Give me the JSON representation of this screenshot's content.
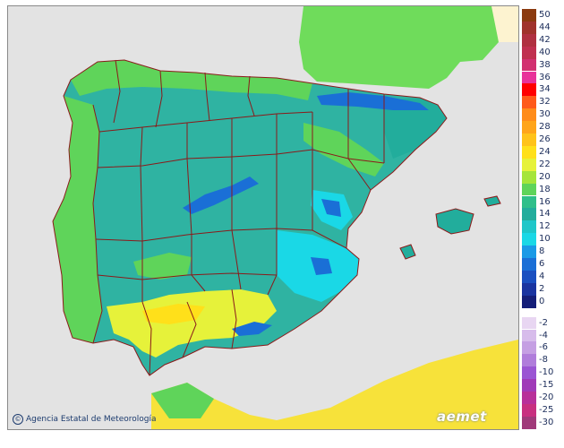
{
  "map": {
    "credit_text": "Agencia Estatal de Meteorología",
    "credit_icon": "copyright-icon",
    "logo_text": "aemet",
    "colors": {
      "sea": "#e3e3e3",
      "land_base": "#2fb3a2",
      "borders": "#8b1a1a",
      "france": "#6fdc5b",
      "africa": "#f7e23a"
    }
  },
  "legend": {
    "positive": [
      {
        "label": "50",
        "color": "#8b3a0f"
      },
      {
        "label": "44",
        "color": "#a0322b"
      },
      {
        "label": "42",
        "color": "#b03040"
      },
      {
        "label": "40",
        "color": "#c0304f"
      },
      {
        "label": "38",
        "color": "#d23070"
      },
      {
        "label": "36",
        "color": "#e8329a"
      },
      {
        "label": "34",
        "color": "#ff0000"
      },
      {
        "label": "32",
        "color": "#ff5a1a"
      },
      {
        "label": "30",
        "color": "#ff8c1a"
      },
      {
        "label": "28",
        "color": "#ffa51a"
      },
      {
        "label": "26",
        "color": "#ffc31a"
      },
      {
        "label": "24",
        "color": "#ffe01a"
      },
      {
        "label": "22",
        "color": "#e6f23a"
      },
      {
        "label": "20",
        "color": "#a6e53a"
      },
      {
        "label": "18",
        "color": "#5fd45a"
      },
      {
        "label": "16",
        "color": "#2fbf8a"
      },
      {
        "label": "14",
        "color": "#22ad9c"
      },
      {
        "label": "12",
        "color": "#1fc7c9"
      },
      {
        "label": "10",
        "color": "#1ad8e6"
      },
      {
        "label": "8",
        "color": "#1a9ae6"
      },
      {
        "label": "6",
        "color": "#1a6fd6"
      },
      {
        "label": "4",
        "color": "#1a4fc0"
      },
      {
        "label": "2",
        "color": "#1a34a0"
      },
      {
        "label": "0",
        "color": "#141e78"
      }
    ],
    "negative": [
      {
        "label": "-2",
        "color": "#e8d6f2"
      },
      {
        "label": "-4",
        "color": "#d7bceb"
      },
      {
        "label": "-6",
        "color": "#c59fe3"
      },
      {
        "label": "-8",
        "color": "#b07ddb"
      },
      {
        "label": "-10",
        "color": "#9a55d3"
      },
      {
        "label": "-15",
        "color": "#a03ab8"
      },
      {
        "label": "-20",
        "color": "#b8309a"
      },
      {
        "label": "-25",
        "color": "#c83080"
      },
      {
        "label": "-30",
        "color": "#a03a7a"
      }
    ]
  }
}
